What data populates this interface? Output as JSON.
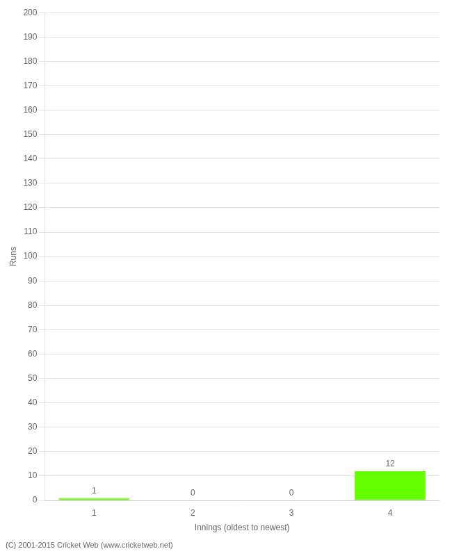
{
  "chart_data": {
    "type": "bar",
    "xlabel": "Innings (oldest to newest)",
    "ylabel": "Runs",
    "categories": [
      "1",
      "2",
      "3",
      "4"
    ],
    "values": [
      1,
      0,
      0,
      12
    ],
    "color": "#66ff00",
    "ylim": [
      0,
      200
    ],
    "yticks": [
      0,
      10,
      20,
      30,
      40,
      50,
      60,
      70,
      80,
      90,
      100,
      110,
      120,
      130,
      140,
      150,
      160,
      170,
      180,
      190,
      200
    ],
    "grid": true,
    "data_labels": true,
    "annotations": [
      "(C) 2001-2015 Cricket Web (www.cricketweb.net)"
    ]
  }
}
